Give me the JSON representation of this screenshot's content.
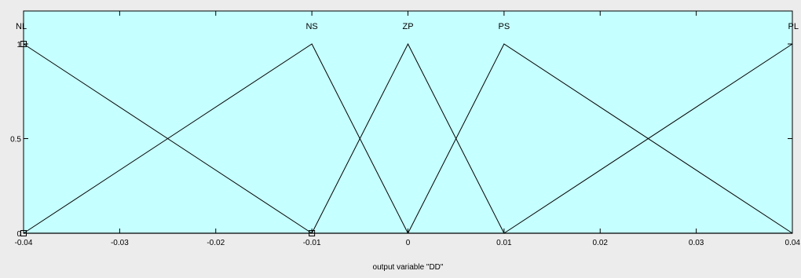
{
  "chart_data": {
    "type": "line",
    "title": "",
    "xlabel": "output variable \"DD\"",
    "ylabel": "",
    "xlim": [
      -0.04,
      0.04
    ],
    "ylim": [
      0,
      1
    ],
    "x_ticks": [
      -0.04,
      -0.03,
      -0.02,
      -0.01,
      0,
      0.01,
      0.02,
      0.03,
      0.04
    ],
    "x_tick_labels": [
      "-0.04",
      "-0.03",
      "-0.02",
      "-0.01",
      "0",
      "0.01",
      "0.02",
      "0.03",
      "0.04"
    ],
    "y_ticks": [
      0,
      0.5,
      1
    ],
    "y_tick_labels": [
      "0",
      "0.5",
      "1"
    ],
    "grid": false,
    "plot_background": "#c6ffff",
    "line_color": "#000000",
    "series": [
      {
        "name": "NL",
        "x": [
          -0.04,
          -0.01
        ],
        "y": [
          1,
          0
        ]
      },
      {
        "name": "NS",
        "x": [
          -0.04,
          -0.01,
          0
        ],
        "y": [
          0,
          1,
          0
        ]
      },
      {
        "name": "ZP",
        "x": [
          -0.01,
          0,
          0.01
        ],
        "y": [
          0,
          1,
          0
        ]
      },
      {
        "name": "PS",
        "x": [
          0,
          0.01,
          0.04
        ],
        "y": [
          0,
          1,
          0
        ]
      },
      {
        "name": "PL",
        "x": [
          0.01,
          0.04
        ],
        "y": [
          0,
          1
        ]
      }
    ],
    "markers": [
      {
        "x": -0.04,
        "y": 1
      },
      {
        "x": -0.04,
        "y": 0
      },
      {
        "x": -0.01,
        "y": 0
      }
    ]
  }
}
